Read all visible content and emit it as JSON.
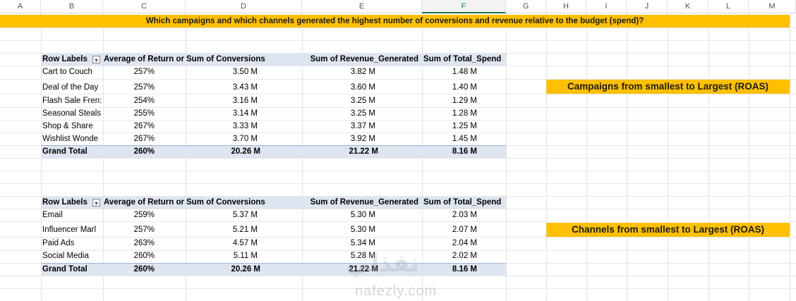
{
  "columns": [
    "A",
    "B",
    "C",
    "D",
    "E",
    "F",
    "G",
    "H",
    "I",
    "J",
    "K",
    "L",
    "M"
  ],
  "banner": "Which campaigns and which channels generated the highest number of conversions and revenue relative to the budget (spend)?",
  "pivot1": {
    "headers": [
      "Row Labels",
      "Average of Return or",
      "Sum of Conversions",
      "Sum of Revenue_Generated",
      "Sum of Total_Spend"
    ],
    "rows": [
      [
        "Cart to Couch",
        "257%",
        "3.50 M",
        "3.82 M",
        "1.48 M"
      ],
      [
        "Deal of the Day",
        "257%",
        "3.43 M",
        "3.60 M",
        "1.40 M"
      ],
      [
        "Flash Sale Fren:",
        "254%",
        "3.16 M",
        "3.25 M",
        "1.29 M"
      ],
      [
        "Seasonal Steals",
        "255%",
        "3.14 M",
        "3.25 M",
        "1.28 M"
      ],
      [
        "Shop & Share",
        "267%",
        "3.33 M",
        "3.37 M",
        "1.25 M"
      ],
      [
        "Wishlist Wonde",
        "267%",
        "3.70 M",
        "3.92 M",
        "1.45 M"
      ]
    ],
    "total": [
      "Grand Total",
      "260%",
      "20.26 M",
      "21.22 M",
      "8.16 M"
    ]
  },
  "pivot2": {
    "headers": [
      "Row Labels",
      "Average of Return or",
      "Sum of Conversions",
      "Sum of Revenue_Generated",
      "Sum of Total_Spend"
    ],
    "rows": [
      [
        "Email",
        "259%",
        "5.37 M",
        "5.30 M",
        "2.03 M"
      ],
      [
        "Influencer Marl",
        "257%",
        "5.21 M",
        "5.30 M",
        "2.07 M"
      ],
      [
        "Paid Ads",
        "263%",
        "4.57 M",
        "5.34 M",
        "2.04 M"
      ],
      [
        "Social Media",
        "260%",
        "5.11 M",
        "5.28 M",
        "2.02 M"
      ]
    ],
    "total": [
      "Grand Total",
      "260%",
      "20.26 M",
      "21.22 M",
      "8.16 M"
    ]
  },
  "callouts": {
    "campaigns": "Campaigns from smallest to Largest (ROAS)",
    "channels": "Channels from smallest to Largest (ROAS)"
  },
  "watermark": {
    "arabic": "نفذلي",
    "latin": "nafezly.com"
  },
  "colors": {
    "banner": "#ffc000",
    "pivot_header": "#dde5f0",
    "selected_column": "#217346"
  }
}
